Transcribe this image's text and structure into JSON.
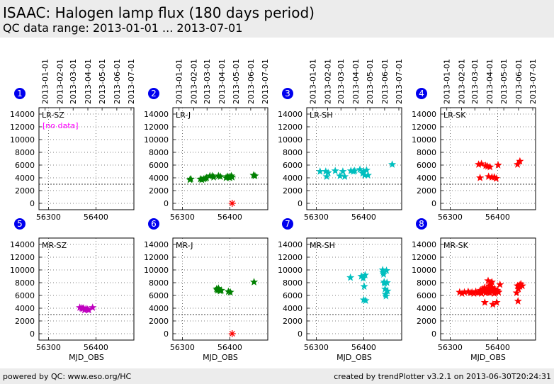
{
  "header": {
    "title": "ISAAC: Halogen lamp flux (180 days period)",
    "subtitle": "QC data range: 2013-01-01 ... 2013-07-01"
  },
  "footer": {
    "left": "powered by QC: www.eso.org/HC",
    "right": "created by trendPlotter v3.2.1 on 2013-06-30T20:24:31"
  },
  "chart_data": {
    "type": "scatter",
    "marker": "star",
    "xlim": [
      56280,
      56480
    ],
    "ylim": [
      -1000,
      15000
    ],
    "x_ticks": [
      56300,
      56400
    ],
    "y_ticks": [
      0,
      2000,
      4000,
      6000,
      8000,
      10000,
      12000,
      14000
    ],
    "date_axis_ticks": [
      "2013-01-01",
      "2013-02-01",
      "2013-03-01",
      "2013-04-01",
      "2013-05-01",
      "2013-06-01",
      "2013-07-01"
    ],
    "date_axis_mjd": [
      56293,
      56324,
      56352,
      56383,
      56413,
      56444,
      56474
    ],
    "xlabel": "MJD_OBS",
    "threshold_y": 3000,
    "grid": "dotted",
    "panels": [
      {
        "id": "1",
        "label": "LR-SZ",
        "color": "#ff00ff",
        "note": "[no data]",
        "points": []
      },
      {
        "id": "2",
        "label": "LR-J",
        "color": "#008000",
        "points": [
          [
            56316,
            3700
          ],
          [
            56318,
            3800
          ],
          [
            56338,
            3800
          ],
          [
            56341,
            3700
          ],
          [
            56345,
            3800
          ],
          [
            56348,
            3900
          ],
          [
            56351,
            4000
          ],
          [
            56358,
            4300
          ],
          [
            56363,
            4300
          ],
          [
            56366,
            4100
          ],
          [
            56376,
            4300
          ],
          [
            56380,
            4200
          ],
          [
            56392,
            4000
          ],
          [
            56395,
            4200
          ],
          [
            56398,
            4100
          ],
          [
            56400,
            4000
          ],
          [
            56403,
            4300
          ],
          [
            56405,
            4100
          ],
          [
            56450,
            4400
          ],
          [
            56453,
            4300
          ]
        ],
        "outliers": [
          [
            56405,
            0
          ]
        ]
      },
      {
        "id": "3",
        "label": "LR-SH",
        "color": "#00bfbf",
        "points": [
          [
            56308,
            5000
          ],
          [
            56320,
            5000
          ],
          [
            56322,
            4200
          ],
          [
            56325,
            4800
          ],
          [
            56340,
            5100
          ],
          [
            56350,
            4300
          ],
          [
            56356,
            5000
          ],
          [
            56360,
            4200
          ],
          [
            56373,
            5100
          ],
          [
            56378,
            5000
          ],
          [
            56381,
            5100
          ],
          [
            56392,
            5300
          ],
          [
            56398,
            4700
          ],
          [
            56400,
            5000
          ],
          [
            56402,
            4400
          ],
          [
            56406,
            5200
          ],
          [
            56409,
            4400
          ],
          [
            56460,
            6100
          ]
        ]
      },
      {
        "id": "4",
        "label": "LR-SK",
        "color": "#ff0000",
        "points": [
          [
            56360,
            6100
          ],
          [
            56363,
            4000
          ],
          [
            56366,
            6200
          ],
          [
            56375,
            5900
          ],
          [
            56379,
            5800
          ],
          [
            56381,
            4200
          ],
          [
            56384,
            5700
          ],
          [
            56388,
            4100
          ],
          [
            56393,
            4100
          ],
          [
            56397,
            3900
          ],
          [
            56401,
            6000
          ],
          [
            56442,
            6100
          ],
          [
            56447,
            6600
          ]
        ]
      },
      {
        "id": "5",
        "label": "MR-SZ",
        "color": "#bf00bf",
        "points": [
          [
            56366,
            4100
          ],
          [
            56370,
            4000
          ],
          [
            56372,
            3900
          ],
          [
            56374,
            4000
          ],
          [
            56376,
            3700
          ],
          [
            56379,
            3900
          ],
          [
            56382,
            3800
          ],
          [
            56385,
            3700
          ],
          [
            56393,
            4100
          ]
        ]
      },
      {
        "id": "6",
        "label": "MR-J",
        "color": "#008000",
        "points": [
          [
            56372,
            7000
          ],
          [
            56374,
            6800
          ],
          [
            56376,
            7100
          ],
          [
            56378,
            6800
          ],
          [
            56380,
            6700
          ],
          [
            56382,
            6800
          ],
          [
            56397,
            6600
          ],
          [
            56401,
            6500
          ],
          [
            56451,
            8100
          ]
        ],
        "outliers": [
          [
            56405,
            0
          ]
        ]
      },
      {
        "id": "7",
        "label": "MR-SH",
        "color": "#00bfbf",
        "points": [
          [
            56372,
            8800
          ],
          [
            56395,
            9000
          ],
          [
            56399,
            8700
          ],
          [
            56401,
            7400
          ],
          [
            56403,
            9200
          ],
          [
            56400,
            5300
          ],
          [
            56404,
            5200
          ],
          [
            56440,
            10000
          ],
          [
            56441,
            9600
          ],
          [
            56442,
            9300
          ],
          [
            56443,
            8100
          ],
          [
            56444,
            7900
          ],
          [
            56445,
            7000
          ],
          [
            56446,
            6200
          ],
          [
            56447,
            5900
          ],
          [
            56448,
            9900
          ],
          [
            56449,
            8000
          ],
          [
            56450,
            6700
          ]
        ]
      },
      {
        "id": "8",
        "label": "MR-SK",
        "color": "#ff0000",
        "points": [
          [
            56320,
            6500
          ],
          [
            56325,
            6300
          ],
          [
            56330,
            6500
          ],
          [
            56338,
            6600
          ],
          [
            56342,
            6400
          ],
          [
            56346,
            6500
          ],
          [
            56350,
            6300
          ],
          [
            56354,
            6600
          ],
          [
            56358,
            6400
          ],
          [
            56362,
            6500
          ],
          [
            56364,
            6800
          ],
          [
            56366,
            6300
          ],
          [
            56368,
            7000
          ],
          [
            56370,
            6600
          ],
          [
            56372,
            7200
          ],
          [
            56373,
            4900
          ],
          [
            56374,
            6800
          ],
          [
            56375,
            6400
          ],
          [
            56376,
            7000
          ],
          [
            56378,
            6700
          ],
          [
            56380,
            8300
          ],
          [
            56381,
            6500
          ],
          [
            56382,
            7500
          ],
          [
            56383,
            7000
          ],
          [
            56384,
            6400
          ],
          [
            56385,
            7700
          ],
          [
            56386,
            6800
          ],
          [
            56388,
            8100
          ],
          [
            56389,
            7200
          ],
          [
            56390,
            4600
          ],
          [
            56392,
            6900
          ],
          [
            56393,
            6300
          ],
          [
            56394,
            7000
          ],
          [
            56396,
            6500
          ],
          [
            56398,
            4900
          ],
          [
            56399,
            6800
          ],
          [
            56400,
            6600
          ],
          [
            56402,
            6500
          ],
          [
            56405,
            7700
          ],
          [
            56440,
            6400
          ],
          [
            56442,
            7500
          ],
          [
            56443,
            5100
          ],
          [
            56444,
            7000
          ],
          [
            56446,
            7600
          ],
          [
            56447,
            7400
          ],
          [
            56449,
            7800
          ],
          [
            56452,
            7500
          ]
        ]
      }
    ]
  }
}
